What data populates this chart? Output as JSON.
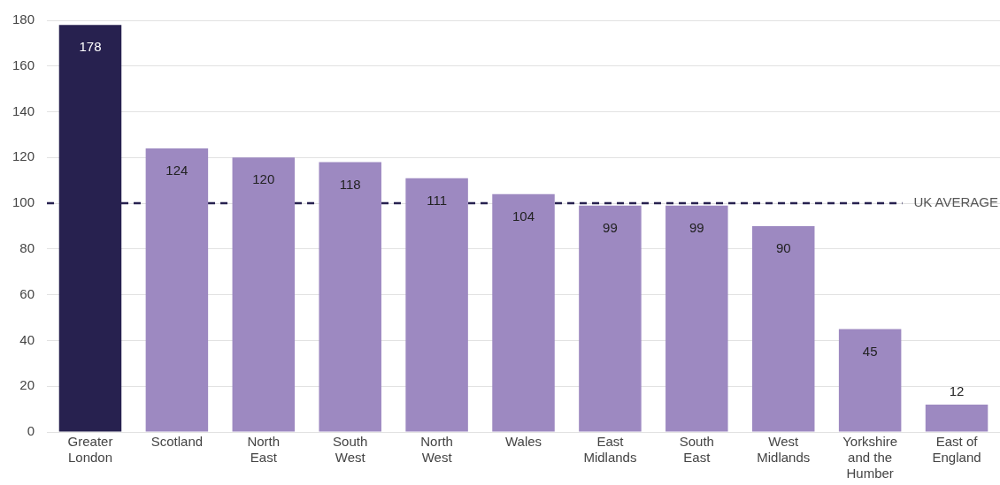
{
  "chart_data": {
    "type": "bar",
    "categories": [
      "Greater London",
      "Scotland",
      "North East",
      "South West",
      "North West",
      "Wales",
      "East Midlands",
      "South East",
      "West Midlands",
      "Yorkshire and the Humber",
      "East of England"
    ],
    "values": [
      178,
      124,
      120,
      118,
      111,
      104,
      99,
      99,
      90,
      45,
      12
    ],
    "colors": [
      "#27214f",
      "#9d89c1",
      "#9d89c1",
      "#9d89c1",
      "#9d89c1",
      "#9d89c1",
      "#9d89c1",
      "#9d89c1",
      "#9d89c1",
      "#9d89c1",
      "#9d89c1"
    ],
    "ylim": [
      0,
      180
    ],
    "yticks": [
      0,
      20,
      40,
      60,
      80,
      100,
      120,
      140,
      160,
      180
    ],
    "grid": "y",
    "legend": false,
    "data_labels": true,
    "ref_lines": [
      {
        "axis": "y",
        "value": 100,
        "label": "UK AVERAGE",
        "color": "#27214f",
        "line_style": "dashed"
      }
    ]
  }
}
